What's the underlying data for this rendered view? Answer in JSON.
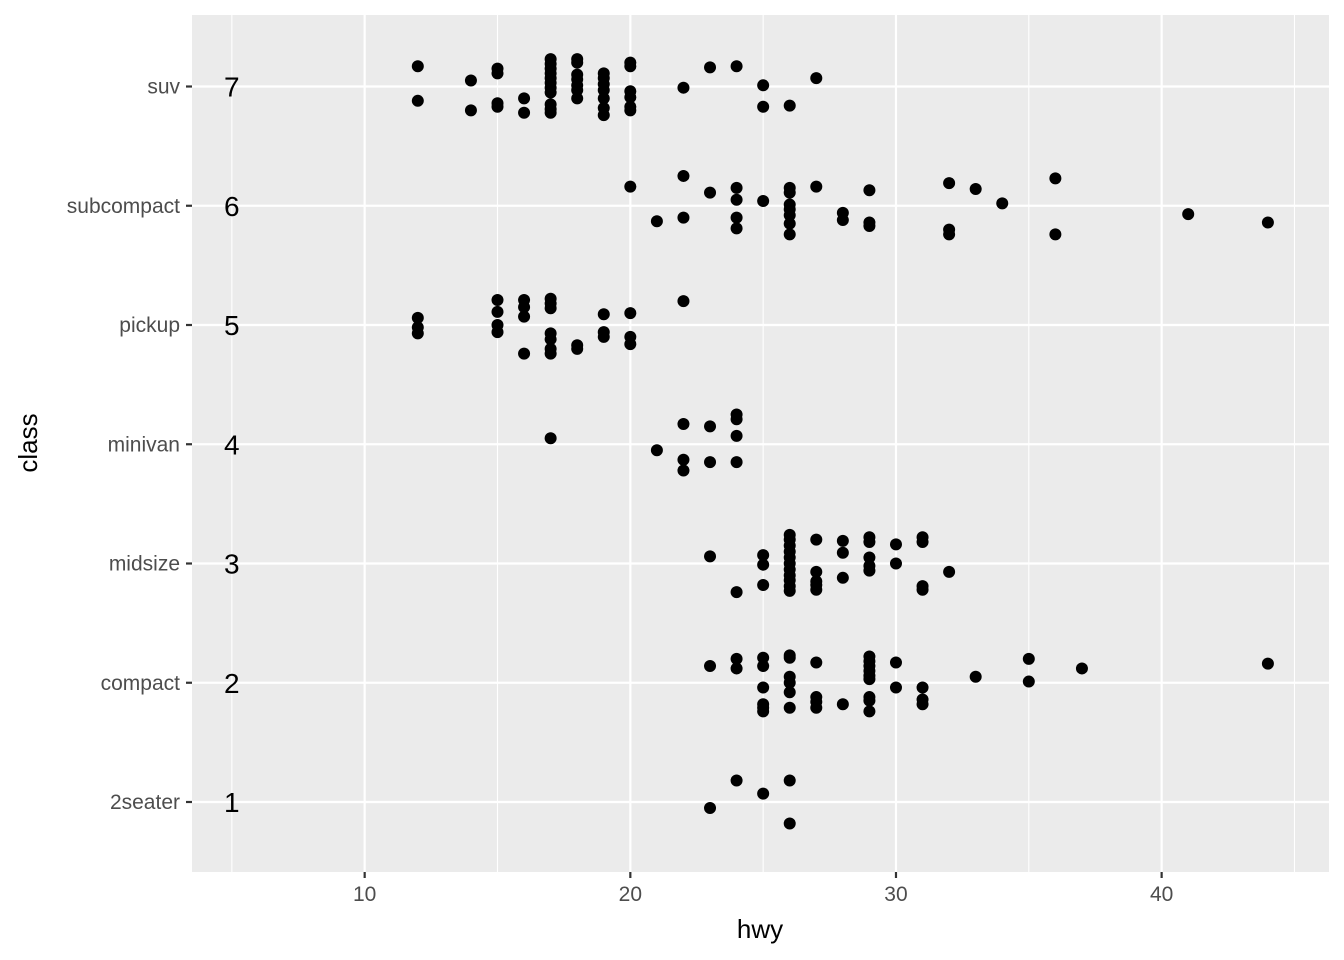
{
  "chart_data": {
    "type": "scatter",
    "xlabel": "hwy",
    "ylabel": "class",
    "xlim": [
      3.5,
      46.3
    ],
    "x_ticks": [
      10,
      20,
      30,
      40
    ],
    "categories": [
      "2seater",
      "compact",
      "midsize",
      "minivan",
      "pickup",
      "subcompact",
      "suv"
    ],
    "annotations": [
      "1",
      "2",
      "3",
      "4",
      "5",
      "6",
      "7"
    ],
    "annotation_x": 5,
    "grid": true,
    "legend": "none",
    "colors": {
      "panel": "#ebebeb",
      "grid": "#ffffff",
      "point": "#000000"
    },
    "points": [
      {
        "class": "suv",
        "hwy": 12,
        "jitter": 0.17
      },
      {
        "class": "suv",
        "hwy": 12,
        "jitter": -0.12
      },
      {
        "class": "suv",
        "hwy": 14,
        "jitter": 0.05
      },
      {
        "class": "suv",
        "hwy": 14,
        "jitter": -0.2
      },
      {
        "class": "suv",
        "hwy": 15,
        "jitter": 0.15
      },
      {
        "class": "suv",
        "hwy": 15,
        "jitter": 0.11
      },
      {
        "class": "suv",
        "hwy": 15,
        "jitter": -0.14
      },
      {
        "class": "suv",
        "hwy": 15,
        "jitter": -0.17
      },
      {
        "class": "suv",
        "hwy": 16,
        "jitter": -0.1
      },
      {
        "class": "suv",
        "hwy": 16,
        "jitter": -0.22
      },
      {
        "class": "suv",
        "hwy": 17,
        "jitter": 0.23
      },
      {
        "class": "suv",
        "hwy": 17,
        "jitter": 0.19
      },
      {
        "class": "suv",
        "hwy": 17,
        "jitter": 0.15
      },
      {
        "class": "suv",
        "hwy": 17,
        "jitter": 0.11
      },
      {
        "class": "suv",
        "hwy": 17,
        "jitter": 0.07
      },
      {
        "class": "suv",
        "hwy": 17,
        "jitter": 0.03
      },
      {
        "class": "suv",
        "hwy": 17,
        "jitter": -0.01
      },
      {
        "class": "suv",
        "hwy": 17,
        "jitter": -0.05
      },
      {
        "class": "suv",
        "hwy": 17,
        "jitter": -0.15
      },
      {
        "class": "suv",
        "hwy": 17,
        "jitter": -0.19
      },
      {
        "class": "suv",
        "hwy": 17,
        "jitter": -0.22
      },
      {
        "class": "suv",
        "hwy": 18,
        "jitter": 0.23
      },
      {
        "class": "suv",
        "hwy": 18,
        "jitter": 0.2
      },
      {
        "class": "suv",
        "hwy": 18,
        "jitter": 0.1
      },
      {
        "class": "suv",
        "hwy": 18,
        "jitter": 0.06
      },
      {
        "class": "suv",
        "hwy": 18,
        "jitter": 0.01
      },
      {
        "class": "suv",
        "hwy": 18,
        "jitter": -0.03
      },
      {
        "class": "suv",
        "hwy": 18,
        "jitter": -0.1
      },
      {
        "class": "suv",
        "hwy": 19,
        "jitter": 0.11
      },
      {
        "class": "suv",
        "hwy": 19,
        "jitter": 0.07
      },
      {
        "class": "suv",
        "hwy": 19,
        "jitter": 0.02
      },
      {
        "class": "suv",
        "hwy": 19,
        "jitter": -0.03
      },
      {
        "class": "suv",
        "hwy": 19,
        "jitter": -0.1
      },
      {
        "class": "suv",
        "hwy": 19,
        "jitter": -0.18
      },
      {
        "class": "suv",
        "hwy": 19,
        "jitter": -0.24
      },
      {
        "class": "suv",
        "hwy": 20,
        "jitter": 0.2
      },
      {
        "class": "suv",
        "hwy": 20,
        "jitter": 0.17
      },
      {
        "class": "suv",
        "hwy": 20,
        "jitter": -0.04
      },
      {
        "class": "suv",
        "hwy": 20,
        "jitter": -0.09
      },
      {
        "class": "suv",
        "hwy": 20,
        "jitter": -0.17
      },
      {
        "class": "suv",
        "hwy": 20,
        "jitter": -0.2
      },
      {
        "class": "suv",
        "hwy": 22,
        "jitter": -0.01
      },
      {
        "class": "suv",
        "hwy": 23,
        "jitter": 0.16
      },
      {
        "class": "suv",
        "hwy": 24,
        "jitter": 0.17
      },
      {
        "class": "suv",
        "hwy": 25,
        "jitter": 0.01
      },
      {
        "class": "suv",
        "hwy": 25,
        "jitter": -0.17
      },
      {
        "class": "suv",
        "hwy": 26,
        "jitter": -0.16
      },
      {
        "class": "suv",
        "hwy": 27,
        "jitter": 0.07
      },
      {
        "class": "subcompact",
        "hwy": 20,
        "jitter": 0.16
      },
      {
        "class": "subcompact",
        "hwy": 21,
        "jitter": -0.13
      },
      {
        "class": "subcompact",
        "hwy": 22,
        "jitter": 0.25
      },
      {
        "class": "subcompact",
        "hwy": 22,
        "jitter": -0.1
      },
      {
        "class": "subcompact",
        "hwy": 23,
        "jitter": 0.11
      },
      {
        "class": "subcompact",
        "hwy": 24,
        "jitter": 0.15
      },
      {
        "class": "subcompact",
        "hwy": 24,
        "jitter": 0.05
      },
      {
        "class": "subcompact",
        "hwy": 24,
        "jitter": -0.1
      },
      {
        "class": "subcompact",
        "hwy": 24,
        "jitter": -0.19
      },
      {
        "class": "subcompact",
        "hwy": 25,
        "jitter": 0.04
      },
      {
        "class": "subcompact",
        "hwy": 26,
        "jitter": 0.15
      },
      {
        "class": "subcompact",
        "hwy": 26,
        "jitter": 0.11
      },
      {
        "class": "subcompact",
        "hwy": 26,
        "jitter": 0.01
      },
      {
        "class": "subcompact",
        "hwy": 26,
        "jitter": -0.03
      },
      {
        "class": "subcompact",
        "hwy": 26,
        "jitter": -0.08
      },
      {
        "class": "subcompact",
        "hwy": 26,
        "jitter": -0.15
      },
      {
        "class": "subcompact",
        "hwy": 26,
        "jitter": -0.24
      },
      {
        "class": "subcompact",
        "hwy": 27,
        "jitter": 0.16
      },
      {
        "class": "subcompact",
        "hwy": 28,
        "jitter": -0.06
      },
      {
        "class": "subcompact",
        "hwy": 28,
        "jitter": -0.12
      },
      {
        "class": "subcompact",
        "hwy": 29,
        "jitter": 0.13
      },
      {
        "class": "subcompact",
        "hwy": 29,
        "jitter": -0.14
      },
      {
        "class": "subcompact",
        "hwy": 29,
        "jitter": -0.17
      },
      {
        "class": "subcompact",
        "hwy": 32,
        "jitter": 0.19
      },
      {
        "class": "subcompact",
        "hwy": 32,
        "jitter": -0.2
      },
      {
        "class": "subcompact",
        "hwy": 32,
        "jitter": -0.24
      },
      {
        "class": "subcompact",
        "hwy": 33,
        "jitter": 0.14
      },
      {
        "class": "subcompact",
        "hwy": 34,
        "jitter": 0.02
      },
      {
        "class": "subcompact",
        "hwy": 36,
        "jitter": 0.23
      },
      {
        "class": "subcompact",
        "hwy": 36,
        "jitter": -0.24
      },
      {
        "class": "subcompact",
        "hwy": 41,
        "jitter": -0.07
      },
      {
        "class": "subcompact",
        "hwy": 44,
        "jitter": -0.14
      },
      {
        "class": "pickup",
        "hwy": 12,
        "jitter": 0.06
      },
      {
        "class": "pickup",
        "hwy": 12,
        "jitter": -0.02
      },
      {
        "class": "pickup",
        "hwy": 12,
        "jitter": -0.07
      },
      {
        "class": "pickup",
        "hwy": 15,
        "jitter": 0.21
      },
      {
        "class": "pickup",
        "hwy": 15,
        "jitter": 0.11
      },
      {
        "class": "pickup",
        "hwy": 15,
        "jitter": 0.0
      },
      {
        "class": "pickup",
        "hwy": 15,
        "jitter": -0.06
      },
      {
        "class": "pickup",
        "hwy": 16,
        "jitter": 0.21
      },
      {
        "class": "pickup",
        "hwy": 16,
        "jitter": 0.15
      },
      {
        "class": "pickup",
        "hwy": 16,
        "jitter": 0.07
      },
      {
        "class": "pickup",
        "hwy": 16,
        "jitter": -0.24
      },
      {
        "class": "pickup",
        "hwy": 17,
        "jitter": 0.22
      },
      {
        "class": "pickup",
        "hwy": 17,
        "jitter": 0.18
      },
      {
        "class": "pickup",
        "hwy": 17,
        "jitter": 0.14
      },
      {
        "class": "pickup",
        "hwy": 17,
        "jitter": -0.07
      },
      {
        "class": "pickup",
        "hwy": 17,
        "jitter": -0.12
      },
      {
        "class": "pickup",
        "hwy": 17,
        "jitter": -0.2
      },
      {
        "class": "pickup",
        "hwy": 17,
        "jitter": -0.24
      },
      {
        "class": "pickup",
        "hwy": 18,
        "jitter": -0.17
      },
      {
        "class": "pickup",
        "hwy": 18,
        "jitter": -0.2
      },
      {
        "class": "pickup",
        "hwy": 19,
        "jitter": 0.09
      },
      {
        "class": "pickup",
        "hwy": 19,
        "jitter": -0.06
      },
      {
        "class": "pickup",
        "hwy": 19,
        "jitter": -0.1
      },
      {
        "class": "pickup",
        "hwy": 20,
        "jitter": 0.1
      },
      {
        "class": "pickup",
        "hwy": 20,
        "jitter": -0.1
      },
      {
        "class": "pickup",
        "hwy": 20,
        "jitter": -0.16
      },
      {
        "class": "pickup",
        "hwy": 22,
        "jitter": 0.2
      },
      {
        "class": "minivan",
        "hwy": 17,
        "jitter": 0.05
      },
      {
        "class": "minivan",
        "hwy": 21,
        "jitter": -0.05
      },
      {
        "class": "minivan",
        "hwy": 22,
        "jitter": 0.17
      },
      {
        "class": "minivan",
        "hwy": 22,
        "jitter": -0.13
      },
      {
        "class": "minivan",
        "hwy": 22,
        "jitter": -0.22
      },
      {
        "class": "minivan",
        "hwy": 23,
        "jitter": 0.15
      },
      {
        "class": "minivan",
        "hwy": 23,
        "jitter": -0.15
      },
      {
        "class": "minivan",
        "hwy": 24,
        "jitter": 0.25
      },
      {
        "class": "minivan",
        "hwy": 24,
        "jitter": 0.21
      },
      {
        "class": "minivan",
        "hwy": 24,
        "jitter": 0.07
      },
      {
        "class": "minivan",
        "hwy": 24,
        "jitter": -0.15
      },
      {
        "class": "midsize",
        "hwy": 23,
        "jitter": 0.06
      },
      {
        "class": "midsize",
        "hwy": 24,
        "jitter": -0.24
      },
      {
        "class": "midsize",
        "hwy": 25,
        "jitter": 0.07
      },
      {
        "class": "midsize",
        "hwy": 25,
        "jitter": -0.01
      },
      {
        "class": "midsize",
        "hwy": 25,
        "jitter": -0.18
      },
      {
        "class": "midsize",
        "hwy": 26,
        "jitter": 0.24
      },
      {
        "class": "midsize",
        "hwy": 26,
        "jitter": 0.2
      },
      {
        "class": "midsize",
        "hwy": 26,
        "jitter": 0.15
      },
      {
        "class": "midsize",
        "hwy": 26,
        "jitter": 0.1
      },
      {
        "class": "midsize",
        "hwy": 26,
        "jitter": 0.05
      },
      {
        "class": "midsize",
        "hwy": 26,
        "jitter": 0.0
      },
      {
        "class": "midsize",
        "hwy": 26,
        "jitter": -0.05
      },
      {
        "class": "midsize",
        "hwy": 26,
        "jitter": -0.1
      },
      {
        "class": "midsize",
        "hwy": 26,
        "jitter": -0.14
      },
      {
        "class": "midsize",
        "hwy": 26,
        "jitter": -0.19
      },
      {
        "class": "midsize",
        "hwy": 26,
        "jitter": -0.23
      },
      {
        "class": "midsize",
        "hwy": 27,
        "jitter": 0.2
      },
      {
        "class": "midsize",
        "hwy": 27,
        "jitter": -0.07
      },
      {
        "class": "midsize",
        "hwy": 27,
        "jitter": -0.15
      },
      {
        "class": "midsize",
        "hwy": 27,
        "jitter": -0.18
      },
      {
        "class": "midsize",
        "hwy": 27,
        "jitter": -0.22
      },
      {
        "class": "midsize",
        "hwy": 28,
        "jitter": 0.19
      },
      {
        "class": "midsize",
        "hwy": 28,
        "jitter": 0.09
      },
      {
        "class": "midsize",
        "hwy": 28,
        "jitter": -0.12
      },
      {
        "class": "midsize",
        "hwy": 29,
        "jitter": 0.22
      },
      {
        "class": "midsize",
        "hwy": 29,
        "jitter": 0.18
      },
      {
        "class": "midsize",
        "hwy": 29,
        "jitter": 0.05
      },
      {
        "class": "midsize",
        "hwy": 29,
        "jitter": -0.02
      },
      {
        "class": "midsize",
        "hwy": 29,
        "jitter": -0.06
      },
      {
        "class": "midsize",
        "hwy": 30,
        "jitter": 0.16
      },
      {
        "class": "midsize",
        "hwy": 30,
        "jitter": 0.0
      },
      {
        "class": "midsize",
        "hwy": 31,
        "jitter": 0.22
      },
      {
        "class": "midsize",
        "hwy": 31,
        "jitter": 0.18
      },
      {
        "class": "midsize",
        "hwy": 31,
        "jitter": -0.19
      },
      {
        "class": "midsize",
        "hwy": 31,
        "jitter": -0.22
      },
      {
        "class": "midsize",
        "hwy": 32,
        "jitter": -0.07
      },
      {
        "class": "compact",
        "hwy": 23,
        "jitter": 0.14
      },
      {
        "class": "compact",
        "hwy": 24,
        "jitter": 0.2
      },
      {
        "class": "compact",
        "hwy": 24,
        "jitter": 0.12
      },
      {
        "class": "compact",
        "hwy": 25,
        "jitter": 0.21
      },
      {
        "class": "compact",
        "hwy": 25,
        "jitter": 0.14
      },
      {
        "class": "compact",
        "hwy": 25,
        "jitter": -0.04
      },
      {
        "class": "compact",
        "hwy": 25,
        "jitter": -0.18
      },
      {
        "class": "compact",
        "hwy": 25,
        "jitter": -0.21
      },
      {
        "class": "compact",
        "hwy": 25,
        "jitter": -0.24
      },
      {
        "class": "compact",
        "hwy": 26,
        "jitter": 0.23
      },
      {
        "class": "compact",
        "hwy": 26,
        "jitter": 0.21
      },
      {
        "class": "compact",
        "hwy": 26,
        "jitter": 0.05
      },
      {
        "class": "compact",
        "hwy": 26,
        "jitter": 0.0
      },
      {
        "class": "compact",
        "hwy": 26,
        "jitter": -0.08
      },
      {
        "class": "compact",
        "hwy": 26,
        "jitter": -0.21
      },
      {
        "class": "compact",
        "hwy": 27,
        "jitter": 0.17
      },
      {
        "class": "compact",
        "hwy": 27,
        "jitter": -0.12
      },
      {
        "class": "compact",
        "hwy": 27,
        "jitter": -0.16
      },
      {
        "class": "compact",
        "hwy": 27,
        "jitter": -0.21
      },
      {
        "class": "compact",
        "hwy": 28,
        "jitter": -0.18
      },
      {
        "class": "compact",
        "hwy": 29,
        "jitter": 0.22
      },
      {
        "class": "compact",
        "hwy": 29,
        "jitter": 0.18
      },
      {
        "class": "compact",
        "hwy": 29,
        "jitter": 0.14
      },
      {
        "class": "compact",
        "hwy": 29,
        "jitter": 0.1
      },
      {
        "class": "compact",
        "hwy": 29,
        "jitter": 0.06
      },
      {
        "class": "compact",
        "hwy": 29,
        "jitter": 0.03
      },
      {
        "class": "compact",
        "hwy": 29,
        "jitter": -0.12
      },
      {
        "class": "compact",
        "hwy": 29,
        "jitter": -0.15
      },
      {
        "class": "compact",
        "hwy": 29,
        "jitter": -0.24
      },
      {
        "class": "compact",
        "hwy": 30,
        "jitter": 0.17
      },
      {
        "class": "compact",
        "hwy": 30,
        "jitter": -0.04
      },
      {
        "class": "compact",
        "hwy": 31,
        "jitter": -0.04
      },
      {
        "class": "compact",
        "hwy": 31,
        "jitter": -0.14
      },
      {
        "class": "compact",
        "hwy": 31,
        "jitter": -0.18
      },
      {
        "class": "compact",
        "hwy": 33,
        "jitter": 0.05
      },
      {
        "class": "compact",
        "hwy": 35,
        "jitter": 0.2
      },
      {
        "class": "compact",
        "hwy": 35,
        "jitter": 0.01
      },
      {
        "class": "compact",
        "hwy": 37,
        "jitter": 0.12
      },
      {
        "class": "compact",
        "hwy": 44,
        "jitter": 0.16
      },
      {
        "class": "2seater",
        "hwy": 23,
        "jitter": -0.05
      },
      {
        "class": "2seater",
        "hwy": 24,
        "jitter": 0.18
      },
      {
        "class": "2seater",
        "hwy": 25,
        "jitter": 0.07
      },
      {
        "class": "2seater",
        "hwy": 26,
        "jitter": 0.18
      },
      {
        "class": "2seater",
        "hwy": 26,
        "jitter": -0.18
      }
    ]
  }
}
